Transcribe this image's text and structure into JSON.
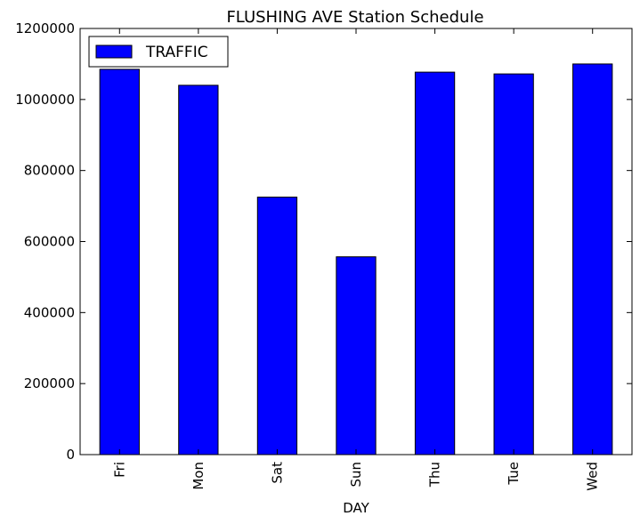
{
  "chart_data": {
    "type": "bar",
    "title": "FLUSHING AVE Station Schedule",
    "xlabel": "DAY",
    "ylabel": "",
    "categories": [
      "Fri",
      "Mon",
      "Sat",
      "Sun",
      "Thu",
      "Tue",
      "Wed"
    ],
    "series": [
      {
        "name": "TRAFFIC",
        "color": "#0000ff",
        "values": [
          1085000,
          1040000,
          725000,
          557000,
          1077000,
          1072000,
          1100000
        ]
      }
    ],
    "ylim": [
      0,
      1200000
    ],
    "yticks": [
      0,
      200000,
      400000,
      600000,
      800000,
      1000000,
      1200000
    ],
    "legend_position": "top-left",
    "grid": false
  }
}
